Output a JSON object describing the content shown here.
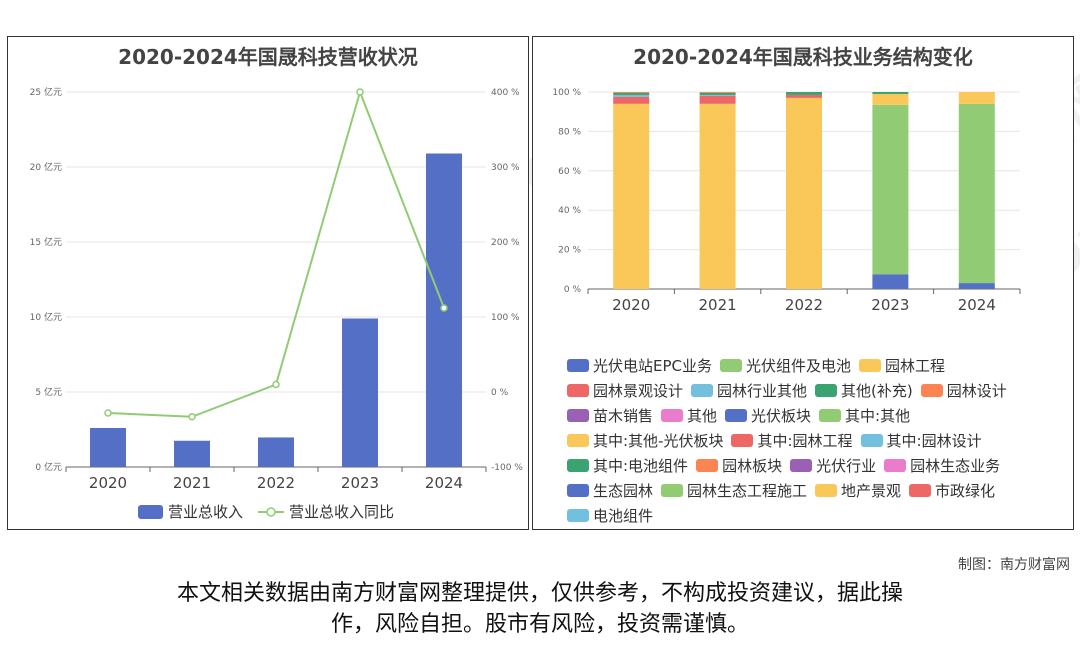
{
  "left_chart": {
    "title": "2020-2024年国晟科技营收状况"
  },
  "right_chart": {
    "title": "2020-2024年国晟科技业务结构变化"
  },
  "credit": "制图：南方财富网",
  "disclaimer": {
    "line1": "本文相关数据由南方财富网整理提供，仅供参考，不构成投资建议，据此操",
    "line2": "作，风险自担。股市有风险，投资需谨慎。"
  },
  "watermark": {
    "cn": "南方财富网",
    "en": "Southmoney.com"
  },
  "chart_data": [
    {
      "type": "bar",
      "title": "2020-2024年国晟科技营收状况",
      "categories": [
        "2020",
        "2021",
        "2022",
        "2023",
        "2024"
      ],
      "series": [
        {
          "name": "营业总收入",
          "type": "bar",
          "axis": "left",
          "color": "#5470c6",
          "values": [
            2.6,
            1.75,
            1.97,
            9.9,
            20.9
          ]
        },
        {
          "name": "营业总收入同比",
          "type": "line",
          "axis": "right",
          "color": "#91cc75",
          "values": [
            -28,
            -33,
            10,
            400,
            112
          ]
        }
      ],
      "y_left": {
        "min": 0,
        "max": 25,
        "ticks": [
          0,
          5,
          10,
          15,
          20,
          25
        ],
        "tick_labels": [
          "0 亿元",
          "5 亿元",
          "10 亿元",
          "15 亿元",
          "20 亿元",
          "25 亿元"
        ]
      },
      "y_right": {
        "min": -100,
        "max": 400,
        "ticks": [
          -100,
          0,
          100,
          200,
          300,
          400
        ],
        "tick_labels": [
          "-100 %",
          "0 %",
          "100 %",
          "200 %",
          "300 %",
          "400 %"
        ]
      },
      "grid": true,
      "legend": "bottom"
    },
    {
      "type": "bar",
      "stacked": true,
      "title": "2020-2024年国晟科技业务结构变化",
      "categories": [
        "2020",
        "2021",
        "2022",
        "2023",
        "2024"
      ],
      "y_axis": {
        "min": 0,
        "max": 100,
        "ticks": [
          0,
          20,
          40,
          60,
          80,
          100
        ],
        "tick_labels": [
          "0 %",
          "20 %",
          "40 %",
          "60 %",
          "80 %",
          "100 %"
        ]
      },
      "series": [
        {
          "name": "光伏电站EPC业务",
          "color": "#5470c6",
          "values": [
            0,
            0,
            0,
            7.5,
            3
          ]
        },
        {
          "name": "光伏组件及电池",
          "color": "#91cc75",
          "values": [
            0,
            0,
            0,
            86,
            91
          ]
        },
        {
          "name": "园林工程",
          "color": "#fac858",
          "values": [
            94,
            94,
            97,
            5.5,
            6
          ]
        },
        {
          "name": "园林景观设计",
          "color": "#ee6666",
          "values": [
            3.5,
            4,
            1.5,
            0,
            0
          ]
        },
        {
          "name": "园林行业其他",
          "color": "#73c0de",
          "values": [
            1,
            0.5,
            0,
            0,
            0
          ]
        },
        {
          "name": "其他(补充)",
          "color": "#3ba272",
          "values": [
            1,
            1,
            1.5,
            1,
            0
          ]
        },
        {
          "name": "园林设计",
          "color": "#fc8452",
          "values": [
            0.5,
            0.5,
            0,
            0,
            0
          ]
        },
        {
          "name": "苗木销售",
          "color": "#9a60b4",
          "values": [
            0,
            0,
            0,
            0,
            0
          ]
        },
        {
          "name": "其他",
          "color": "#ea7ccc",
          "values": [
            0,
            0,
            0,
            0,
            0
          ]
        },
        {
          "name": "光伏板块",
          "color": "#5470c6",
          "values": [
            0,
            0,
            0,
            0,
            0
          ]
        },
        {
          "name": "其中:其他",
          "color": "#91cc75",
          "values": [
            0,
            0,
            0,
            0,
            0
          ]
        },
        {
          "name": "其中:其他-光伏板块",
          "color": "#fac858",
          "values": [
            0,
            0,
            0,
            0,
            0
          ]
        },
        {
          "name": "其中:园林工程",
          "color": "#ee6666",
          "values": [
            0,
            0,
            0,
            0,
            0
          ]
        },
        {
          "name": "其中:园林设计",
          "color": "#73c0de",
          "values": [
            0,
            0,
            0,
            0,
            0
          ]
        },
        {
          "name": "其中:电池组件",
          "color": "#3ba272",
          "values": [
            0,
            0,
            0,
            0,
            0
          ]
        },
        {
          "name": "园林板块",
          "color": "#fc8452",
          "values": [
            0,
            0,
            0,
            0,
            0
          ]
        },
        {
          "name": "光伏行业",
          "color": "#9a60b4",
          "values": [
            0,
            0,
            0,
            0,
            0
          ]
        },
        {
          "name": "园林生态业务",
          "color": "#ea7ccc",
          "values": [
            0,
            0,
            0,
            0,
            0
          ]
        },
        {
          "name": "生态园林",
          "color": "#5470c6",
          "values": [
            0,
            0,
            0,
            0,
            0
          ]
        },
        {
          "name": "园林生态工程施工",
          "color": "#91cc75",
          "values": [
            0,
            0,
            0,
            0,
            0
          ]
        },
        {
          "name": "地产景观",
          "color": "#fac858",
          "values": [
            0,
            0,
            0,
            0,
            0
          ]
        },
        {
          "name": "市政绿化",
          "color": "#ee6666",
          "values": [
            0,
            0,
            0,
            0,
            0
          ]
        },
        {
          "name": "电池组件",
          "color": "#73c0de",
          "values": [
            0,
            0,
            0,
            0,
            0
          ]
        }
      ],
      "grid": true,
      "legend": "bottom"
    }
  ]
}
